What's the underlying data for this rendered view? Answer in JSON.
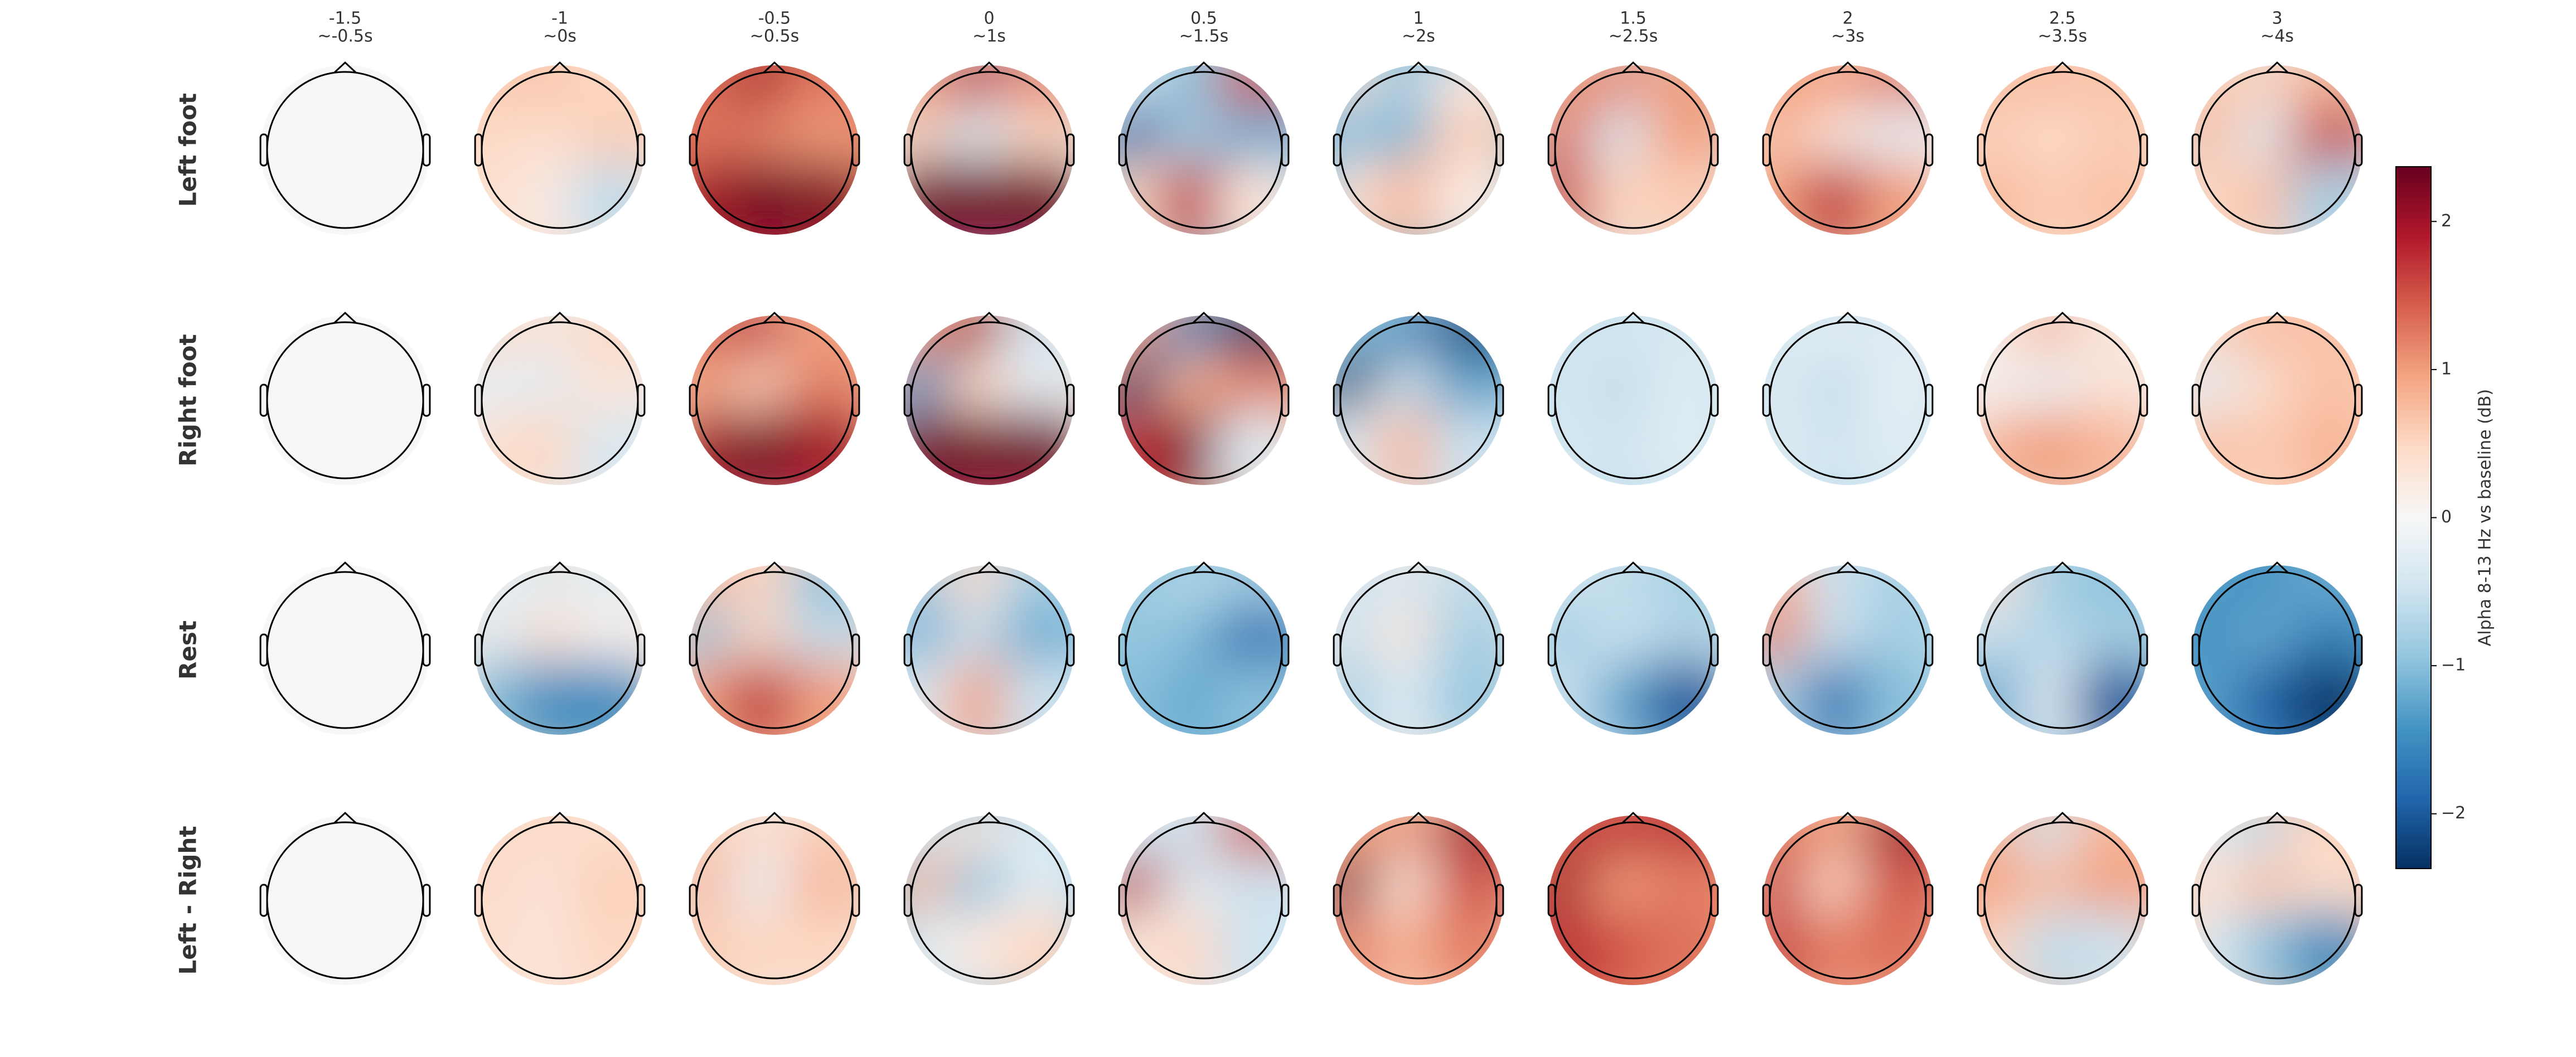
{
  "chart_data": {
    "type": "topomap",
    "columns": [
      {
        "label": "-1.5",
        "sublabel": "~-0.5s"
      },
      {
        "label": "-1",
        "sublabel": "~0s"
      },
      {
        "label": "-0.5",
        "sublabel": "~0.5s"
      },
      {
        "label": "0",
        "sublabel": "~1s"
      },
      {
        "label": "0.5",
        "sublabel": "~1.5s"
      },
      {
        "label": "1",
        "sublabel": "~2s"
      },
      {
        "label": "1.5",
        "sublabel": "~2.5s"
      },
      {
        "label": "2",
        "sublabel": "~3s"
      },
      {
        "label": "2.5",
        "sublabel": "~3.5s"
      },
      {
        "label": "3",
        "sublabel": "~4s"
      }
    ],
    "rows": [
      {
        "name": "Left foot",
        "maps": [
          [
            0,
            0,
            0,
            0,
            0,
            0,
            0,
            0,
            0
          ],
          [
            0.6,
            0.7,
            0.5,
            0.5,
            0.4,
            0.6,
            0.4,
            0.2,
            -0.6
          ],
          [
            1.3,
            2.0,
            1.3,
            1.3,
            1.2,
            1.0,
            2.0,
            2.3,
            2.2
          ],
          [
            1.0,
            1.8,
            1.2,
            0.6,
            -0.4,
            0.5,
            2.3,
            2.3,
            2.3
          ],
          [
            -0.3,
            -1.0,
            1.5,
            -2.0,
            -0.8,
            -1.2,
            0.5,
            1.8,
            0.3
          ],
          [
            0.4,
            -0.8,
            0.2,
            -1.0,
            -1.1,
            0.6,
            0.3,
            0.8,
            0.2
          ],
          [
            1.0,
            1.2,
            1.0,
            1.3,
            -0.4,
            1.0,
            1.6,
            0.5,
            0.6
          ],
          [
            1.0,
            1.0,
            1.3,
            0.8,
            0.3,
            -0.2,
            1.0,
            1.8,
            1.0
          ],
          [
            0.7,
            0.8,
            0.7,
            0.6,
            0.4,
            0.6,
            0.8,
            0.6,
            0.7
          ],
          [
            0.6,
            0.6,
            0.8,
            0.8,
            -0.3,
            1.6,
            0.5,
            0.7,
            -0.8
          ]
        ]
      },
      {
        "name": "Right foot",
        "maps": [
          [
            0,
            0,
            0,
            0,
            0,
            0,
            0,
            0,
            0
          ],
          [
            0.5,
            0.3,
            0.5,
            -0.2,
            -0.3,
            0.3,
            0.4,
            0.5,
            -0.4
          ],
          [
            1.4,
            1.8,
            1.0,
            1.0,
            0.6,
            1.2,
            2.0,
            2.3,
            2.0
          ],
          [
            1.0,
            2.0,
            -0.5,
            -1.5,
            0.5,
            -0.2,
            2.3,
            2.3,
            2.3
          ],
          [
            1.0,
            -1.5,
            -2.3,
            -2.3,
            0.8,
            1.2,
            1.8,
            2.2,
            -0.3
          ],
          [
            -1.0,
            -1.5,
            -2.2,
            -2.3,
            -0.5,
            -1.3,
            -0.3,
            0.8,
            -0.5
          ],
          [
            -0.5,
            -0.4,
            -0.4,
            -0.4,
            -0.6,
            -0.3,
            -0.4,
            -0.5,
            -0.3
          ],
          [
            -0.4,
            -0.2,
            -0.3,
            -0.3,
            -0.6,
            -0.2,
            -0.3,
            -0.5,
            -0.3
          ],
          [
            0.2,
            0.8,
            0.3,
            0.1,
            -0.2,
            0.3,
            0.8,
            1.0,
            0.8
          ],
          [
            0.5,
            0.8,
            0.7,
            -0.3,
            0.4,
            0.7,
            0.7,
            0.6,
            0.8
          ]
        ]
      },
      {
        "name": "Rest",
        "maps": [
          [
            0,
            0,
            0,
            0,
            0,
            0,
            0,
            0,
            0
          ],
          [
            -0.2,
            -0.3,
            -0.3,
            -0.3,
            0.4,
            0.1,
            -1.0,
            -1.5,
            -1.5
          ],
          [
            0.8,
            0.5,
            -1.0,
            -1.0,
            0.5,
            -0.6,
            1.0,
            1.8,
            1.0
          ],
          [
            -0.8,
            0.5,
            -0.8,
            -1.2,
            -0.5,
            -1.2,
            -0.3,
            1.0,
            -0.5
          ],
          [
            -0.9,
            -0.7,
            -0.8,
            -0.9,
            -1.0,
            -1.8,
            -1.0,
            -1.2,
            -1.0
          ],
          [
            -0.5,
            -0.4,
            -0.6,
            -0.5,
            0.3,
            -0.8,
            -0.8,
            -0.3,
            -0.9
          ],
          [
            -0.4,
            -0.6,
            -0.8,
            -0.9,
            -0.5,
            -0.7,
            -0.5,
            -1.2,
            -2.0
          ],
          [
            0.8,
            -0.5,
            -0.8,
            1.2,
            -0.5,
            -0.8,
            -0.8,
            -1.8,
            -1.0
          ],
          [
            0.4,
            -0.8,
            -1.0,
            -0.5,
            -0.7,
            -0.8,
            -1.3,
            -0.3,
            -2.0
          ],
          [
            -1.3,
            -1.5,
            -1.2,
            -1.5,
            -1.2,
            -1.6,
            -1.3,
            -1.9,
            -2.3
          ]
        ]
      },
      {
        "name": "Left - Right",
        "maps": [
          [
            0,
            0,
            0,
            0,
            0,
            0,
            0,
            0,
            0
          ],
          [
            0.4,
            0.5,
            0.4,
            0.5,
            0.3,
            0.6,
            0.4,
            0.3,
            0.5
          ],
          [
            0.6,
            0.4,
            0.6,
            0.8,
            -0.2,
            0.8,
            0.6,
            0.5,
            0.5
          ],
          [
            -0.5,
            0.3,
            -0.3,
            0.8,
            -1.0,
            -0.3,
            -0.3,
            0.2,
            0.5
          ],
          [
            -0.4,
            -0.5,
            1.5,
            1.8,
            -0.3,
            -0.5,
            0.3,
            0.5,
            -0.5
          ],
          [
            1.0,
            1.0,
            2.0,
            2.2,
            0.3,
            1.5,
            1.2,
            0.8,
            1.2
          ],
          [
            1.5,
            1.8,
            1.8,
            2.0,
            1.0,
            1.2,
            1.8,
            1.5,
            1.3
          ],
          [
            1.3,
            1.0,
            2.0,
            1.6,
            0.5,
            1.5,
            1.6,
            1.2,
            1.3
          ],
          [
            0.8,
            -0.5,
            0.8,
            1.0,
            0.7,
            1.0,
            0.5,
            -0.6,
            -0.5
          ],
          [
            -0.3,
            -0.6,
            0.5,
            0.3,
            0.7,
            0.4,
            -0.3,
            -0.9,
            -1.5
          ]
        ]
      }
    ],
    "colorbar_label": "Alpha 8-13 Hz vs baseline (dB)",
    "clim": [
      -2.37,
      2.37
    ],
    "cticks": [
      {
        "value": -2,
        "label": "−2"
      },
      {
        "value": -1,
        "label": "−1"
      },
      0,
      1,
      2
    ],
    "colors": [
      "#67001f",
      "#b2182b",
      "#d6604d",
      "#f4a582",
      "#fddbc7",
      "#f7f7f7",
      "#d1e5f0",
      "#92c5de",
      "#4393c3",
      "#2166ac",
      "#053061"
    ]
  }
}
